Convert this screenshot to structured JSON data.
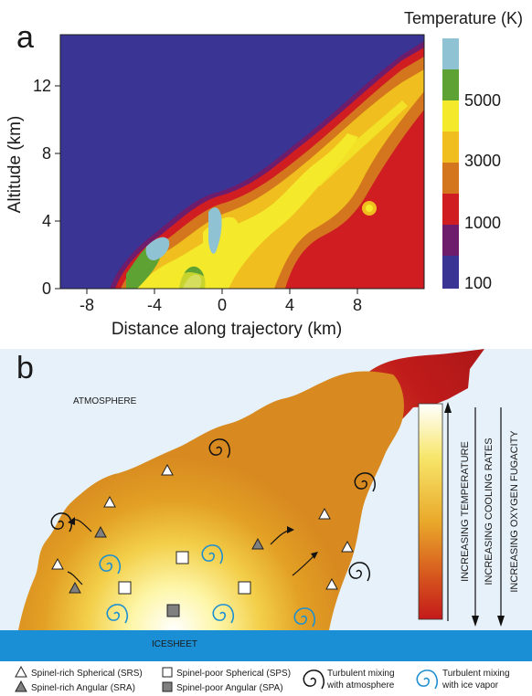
{
  "panel_a": {
    "letter": "a",
    "colorbar_title": "Temperature (K)",
    "colorbar_ticks": [
      "5000",
      "3000",
      "1000",
      "100"
    ],
    "colorbar_colors": [
      "#8fc2d2",
      "#5da233",
      "#f4ea2b",
      "#f0be1e",
      "#d4761e",
      "#cf1d22",
      "#6e1c6c",
      "#3a3595"
    ],
    "xlabel": "Distance along trajectory (km)",
    "ylabel": "Altitude (km)",
    "x_ticks": [
      "-8",
      "-4",
      "0",
      "4",
      "8"
    ],
    "y_ticks": [
      "0",
      "4",
      "8",
      "12"
    ]
  },
  "panel_b": {
    "letter": "b",
    "atmosphere_label": "ATMOSPHERE",
    "icesheet_label": "ICESHEET",
    "arrow_labels": [
      "INCREASING TEMPERATURE",
      "INCREASING COOLING RATES",
      "INCREASING OXYGEN FUGACITY"
    ]
  },
  "legend": {
    "srs": "Spinel-rich Spherical (SRS)",
    "sra": "Spinel-rich Angular (SRA)",
    "sps": "Spinel-poor Spherical (SPS)",
    "spa": "Spinel-poor Angular (SPA)",
    "atm_mix_1": "Turbulent mixing",
    "atm_mix_2": "with atmosphere",
    "ice_mix_1": "Turbulent mixing",
    "ice_mix_2": "with ice vapor"
  }
}
